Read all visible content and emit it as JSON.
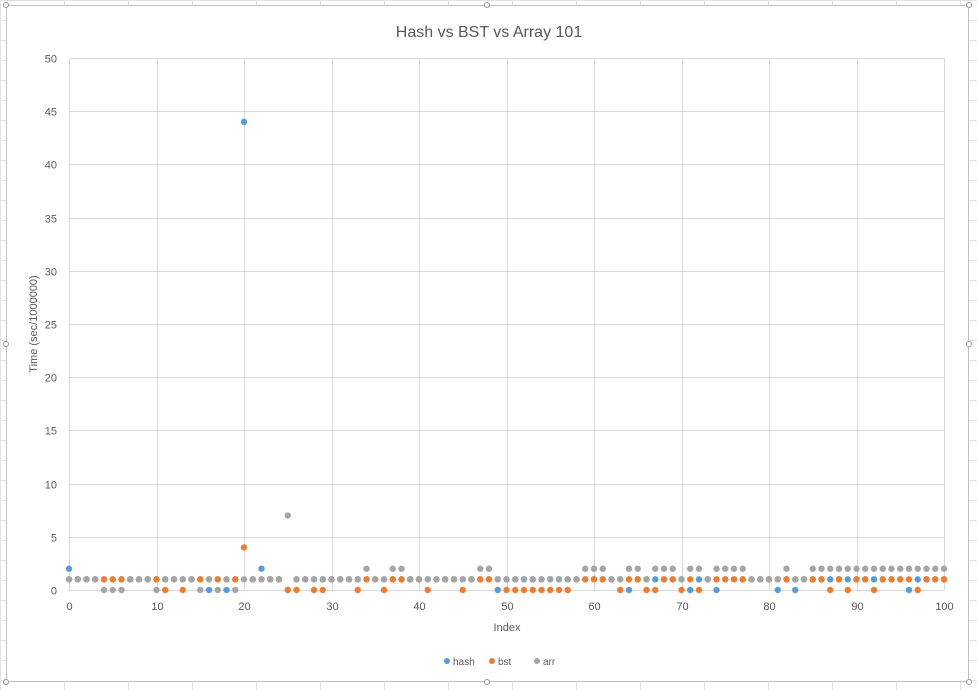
{
  "chart_data": {
    "type": "scatter",
    "title": "Hash vs BST vs Array 101",
    "xlabel": "Index",
    "ylabel": "Time (sec/1000000)",
    "xlim": [
      0,
      100
    ],
    "ylim": [
      0,
      50
    ],
    "xticks": [
      "0",
      "10",
      "20",
      "30",
      "40",
      "50",
      "60",
      "70",
      "80",
      "90",
      "100"
    ],
    "yticks": [
      "0",
      "5",
      "10",
      "15",
      "20",
      "25",
      "30",
      "35",
      "40",
      "45",
      "50"
    ],
    "grid": true,
    "legend_position": "bottom",
    "series": [
      {
        "name": "hash",
        "color": "#5b9bd5",
        "x": [
          0,
          1,
          2,
          3,
          4,
          5,
          6,
          7,
          8,
          9,
          10,
          11,
          12,
          13,
          14,
          15,
          16,
          17,
          18,
          19,
          20,
          21,
          22,
          23,
          24,
          25,
          26,
          27,
          28,
          29,
          30,
          31,
          32,
          33,
          34,
          35,
          36,
          37,
          38,
          39,
          40,
          41,
          42,
          43,
          44,
          45,
          46,
          47,
          48,
          49,
          50,
          51,
          52,
          53,
          54,
          55,
          56,
          57,
          58,
          59,
          60,
          61,
          62,
          63,
          64,
          65,
          66,
          67,
          68,
          69,
          70,
          71,
          72,
          73,
          74,
          75,
          76,
          77,
          78,
          79,
          80,
          81,
          82,
          83,
          84,
          85,
          86,
          87,
          88,
          89,
          90,
          91,
          92,
          93,
          94,
          95,
          96,
          97,
          98,
          99,
          100
        ],
        "y": [
          2,
          1,
          1,
          1,
          1,
          1,
          1,
          1,
          1,
          1,
          1,
          1,
          1,
          1,
          1,
          1,
          0,
          1,
          0,
          1,
          44,
          1,
          2,
          1,
          1,
          0,
          1,
          1,
          1,
          1,
          1,
          1,
          1,
          1,
          1,
          1,
          1,
          1,
          1,
          1,
          1,
          1,
          1,
          1,
          1,
          1,
          1,
          1,
          1,
          0,
          1,
          1,
          1,
          1,
          1,
          1,
          1,
          1,
          1,
          1,
          1,
          1,
          1,
          1,
          0,
          1,
          1,
          1,
          1,
          1,
          1,
          0,
          1,
          1,
          0,
          1,
          1,
          1,
          1,
          1,
          1,
          0,
          1,
          0,
          1,
          1,
          1,
          1,
          1,
          1,
          1,
          1,
          1,
          1,
          1,
          1,
          0,
          1,
          1,
          1,
          1
        ]
      },
      {
        "name": "bst",
        "color": "#ed7d31",
        "x": [
          0,
          1,
          2,
          3,
          4,
          5,
          6,
          7,
          8,
          9,
          10,
          11,
          12,
          13,
          14,
          15,
          16,
          17,
          18,
          19,
          20,
          21,
          22,
          23,
          24,
          25,
          26,
          27,
          28,
          29,
          30,
          31,
          32,
          33,
          34,
          35,
          36,
          37,
          38,
          39,
          40,
          41,
          42,
          43,
          44,
          45,
          46,
          47,
          48,
          49,
          50,
          51,
          52,
          53,
          54,
          55,
          56,
          57,
          58,
          59,
          60,
          61,
          62,
          63,
          64,
          65,
          66,
          67,
          68,
          69,
          70,
          71,
          72,
          73,
          74,
          75,
          76,
          77,
          78,
          79,
          80,
          81,
          82,
          83,
          84,
          85,
          86,
          87,
          88,
          89,
          90,
          91,
          92,
          93,
          94,
          95,
          96,
          97,
          98,
          99,
          100
        ],
        "y": [
          1,
          1,
          1,
          1,
          1,
          1,
          1,
          1,
          1,
          1,
          1,
          0,
          1,
          0,
          1,
          1,
          1,
          1,
          1,
          1,
          4,
          1,
          1,
          1,
          1,
          0,
          0,
          1,
          0,
          0,
          1,
          1,
          1,
          0,
          1,
          1,
          0,
          1,
          1,
          1,
          1,
          0,
          1,
          1,
          1,
          0,
          1,
          1,
          1,
          1,
          0,
          0,
          0,
          0,
          0,
          0,
          0,
          0,
          1,
          1,
          1,
          1,
          1,
          0,
          1,
          1,
          0,
          0,
          1,
          1,
          0,
          1,
          0,
          1,
          1,
          1,
          1,
          1,
          1,
          1,
          1,
          1,
          1,
          1,
          1,
          1,
          1,
          0,
          1,
          0,
          1,
          1,
          0,
          1,
          1,
          1,
          1,
          0,
          1,
          1,
          1
        ]
      },
      {
        "name": "arr",
        "color": "#a5a5a5",
        "x": [
          0,
          1,
          2,
          3,
          4,
          5,
          6,
          7,
          8,
          9,
          10,
          11,
          12,
          13,
          14,
          15,
          16,
          17,
          18,
          19,
          20,
          21,
          22,
          23,
          24,
          25,
          26,
          27,
          28,
          29,
          30,
          31,
          32,
          33,
          34,
          35,
          36,
          37,
          38,
          39,
          40,
          41,
          42,
          43,
          44,
          45,
          46,
          47,
          48,
          49,
          50,
          51,
          52,
          53,
          54,
          55,
          56,
          57,
          58,
          59,
          60,
          61,
          62,
          63,
          64,
          65,
          66,
          67,
          68,
          69,
          70,
          71,
          72,
          73,
          74,
          75,
          76,
          77,
          78,
          79,
          80,
          81,
          82,
          83,
          84,
          85,
          86,
          87,
          88,
          89,
          90,
          91,
          92,
          93,
          94,
          95,
          96,
          97,
          98,
          99,
          100
        ],
        "y": [
          1,
          1,
          1,
          1,
          0,
          0,
          0,
          1,
          1,
          1,
          0,
          1,
          1,
          1,
          1,
          0,
          1,
          0,
          1,
          0,
          1,
          1,
          1,
          1,
          1,
          7,
          1,
          1,
          1,
          1,
          1,
          1,
          1,
          1,
          2,
          1,
          1,
          2,
          2,
          1,
          1,
          1,
          1,
          1,
          1,
          1,
          1,
          2,
          2,
          1,
          1,
          1,
          1,
          1,
          1,
          1,
          1,
          1,
          1,
          2,
          2,
          2,
          1,
          1,
          2,
          2,
          1,
          2,
          2,
          2,
          1,
          2,
          2,
          1,
          2,
          2,
          2,
          2,
          1,
          1,
          1,
          1,
          2,
          1,
          1,
          2,
          2,
          2,
          2,
          2,
          2,
          2,
          2,
          2,
          2,
          2,
          2,
          2,
          2,
          2,
          2
        ]
      }
    ]
  }
}
